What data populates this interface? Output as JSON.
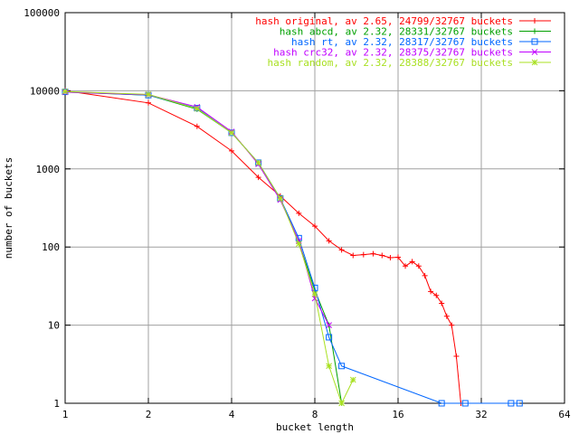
{
  "chart_data": {
    "type": "line",
    "title": "",
    "xlabel": "bucket length",
    "ylabel": "number of buckets",
    "xscale": "log2",
    "yscale": "log10",
    "xlim": [
      1,
      64
    ],
    "ylim": [
      1,
      100000
    ],
    "grid": true,
    "legend_position": "top-right",
    "x_ticks": [
      "1",
      "2",
      "4",
      "8",
      "16",
      "32",
      "64"
    ],
    "y_ticks": [
      "1",
      "10",
      "100",
      "1000",
      "10000",
      "100000"
    ],
    "series": [
      {
        "name": "hash original, av 2.65, 24799/32767 buckets",
        "color": "#ff0000",
        "marker": "plus",
        "x": [
          1,
          2,
          3,
          4,
          5,
          6,
          7,
          8,
          9,
          10,
          11,
          12,
          13,
          14,
          15,
          16,
          17,
          18,
          19,
          20,
          21,
          22,
          23,
          24,
          25,
          26,
          27
        ],
        "y": [
          10000,
          7000,
          3500,
          1700,
          780,
          450,
          270,
          185,
          120,
          92,
          78,
          80,
          82,
          78,
          73,
          74,
          57,
          65,
          57,
          43,
          27,
          24,
          19,
          13,
          10,
          4,
          1
        ]
      },
      {
        "name": "hash abcd, av 2.32, 28331/32767 buckets",
        "color": "#00a000",
        "marker": "vertical",
        "x": [
          1,
          2,
          3,
          4,
          5,
          6,
          7,
          8,
          9,
          10
        ],
        "y": [
          9600,
          8800,
          5800,
          2900,
          1200,
          420,
          115,
          28,
          10,
          1
        ]
      },
      {
        "name": "hash rt, av 2.32, 28317/32767 buckets",
        "color": "#0066ff",
        "marker": "square",
        "x": [
          1,
          2,
          3,
          4,
          5,
          6,
          7,
          8,
          9,
          10,
          23,
          28,
          41,
          44
        ],
        "y": [
          9700,
          8800,
          6000,
          2900,
          1200,
          420,
          130,
          30,
          7,
          3,
          1,
          1,
          1,
          1
        ]
      },
      {
        "name": "hash crc32, av 2.32, 28375/32767 buckets",
        "color": "#c000ff",
        "marker": "cross",
        "x": [
          1,
          2,
          3,
          4,
          5,
          6,
          7,
          8,
          9
        ],
        "y": [
          9600,
          8900,
          6200,
          3000,
          1150,
          400,
          120,
          22,
          10
        ]
      },
      {
        "name": "hash random, av 2.32, 28388/32767 buckets",
        "color": "#a8e020",
        "marker": "star",
        "x": [
          1,
          2,
          3,
          4,
          5,
          6,
          7,
          8,
          9,
          10,
          11
        ],
        "y": [
          9800,
          9000,
          5900,
          2900,
          1200,
          420,
          110,
          25,
          3,
          1,
          2
        ]
      }
    ]
  }
}
